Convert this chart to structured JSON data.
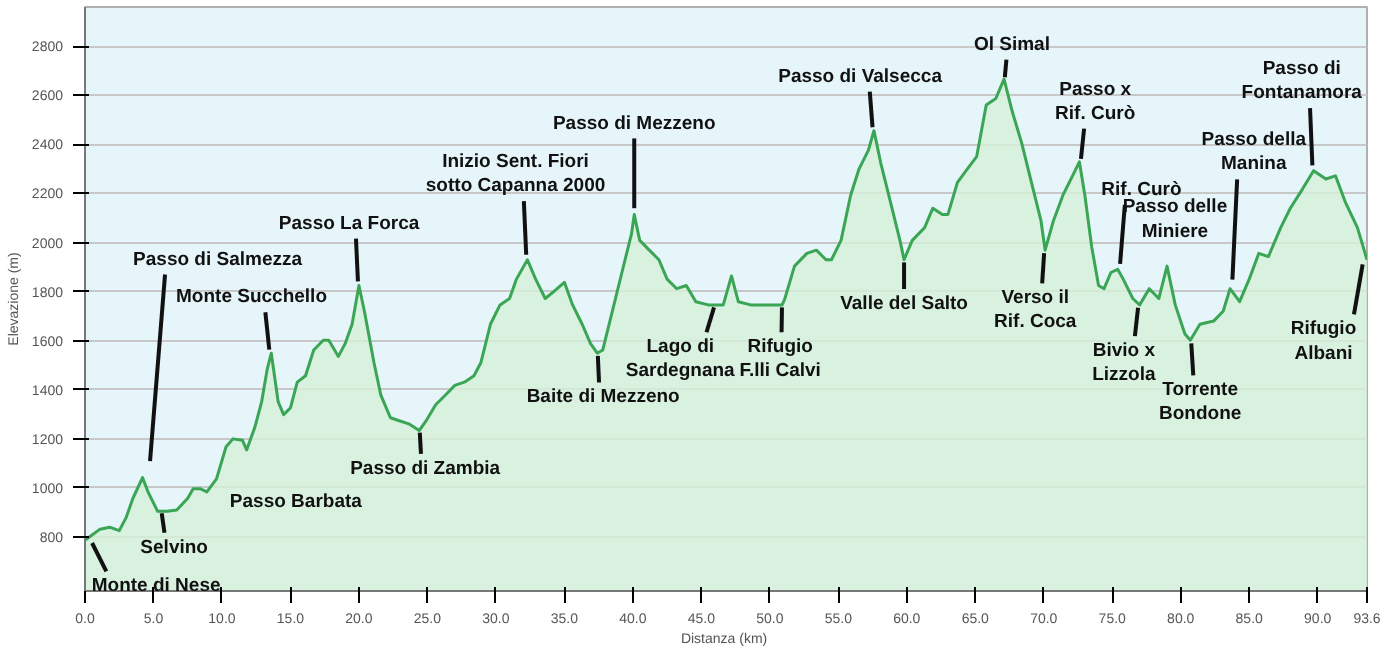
{
  "chart_data": {
    "type": "area",
    "xlabel": "Distanza  (km)",
    "ylabel": "Elevazione (m)",
    "series": [
      {
        "color": "#3aa655",
        "x": [
          0,
          1.1,
          1.8,
          2.5,
          3.0,
          3.5,
          4.2,
          4.6,
          5.3,
          6.0,
          6.7,
          7.5,
          7.9,
          8.4,
          8.9,
          9.6,
          10.3,
          10.8,
          11.5,
          11.8,
          12.4,
          12.9,
          13.3,
          13.6,
          14.1,
          14.5,
          15.0,
          15.5,
          16.1,
          16.7,
          17.4,
          17.8,
          18.5,
          19.0,
          19.5,
          20.0,
          20.4,
          21.1,
          21.6,
          22.3,
          23.0,
          23.7,
          24.4,
          24.9,
          25.6,
          26.3,
          27.0,
          27.7,
          28.4,
          28.9,
          29.6,
          30.3,
          31.0,
          31.5,
          32.3,
          32.9,
          33.6,
          34.2,
          35.0,
          35.6,
          36.3,
          36.9,
          37.4,
          37.8,
          38.5,
          39.2,
          39.9,
          40.1,
          40.5,
          41.2,
          41.9,
          42.5,
          43.2,
          43.9,
          44.6,
          45.5,
          46.2,
          46.6,
          47.2,
          47.7,
          48.6,
          49.5,
          50.9,
          51.1,
          51.8,
          52.7,
          53.4,
          54.1,
          54.5,
          55.2,
          55.9,
          56.5,
          57.2,
          57.6,
          58.1,
          58.8,
          59.5,
          59.8,
          60.4,
          61.3,
          61.9,
          62.6,
          63.0,
          63.7,
          64.4,
          65.1,
          65.8,
          66.5,
          67.1,
          67.7,
          68.4,
          69.1,
          69.8,
          70.1,
          70.7,
          71.4,
          72.1,
          72.6,
          73.0,
          73.5,
          74.0,
          74.4,
          74.9,
          75.4,
          75.8,
          76.5,
          77.0,
          77.7,
          78.4,
          79.0,
          79.6,
          80.3,
          80.7,
          81.4,
          82.4,
          83.1,
          83.6,
          84.3,
          85.0,
          85.7,
          86.4,
          87.3,
          88.0,
          88.9,
          89.7,
          90.6,
          91.3,
          92.0,
          92.9,
          93.6
        ],
        "values": [
          787,
          832,
          840,
          826,
          879,
          958,
          1042,
          984,
          905,
          905,
          910,
          958,
          997,
          997,
          984,
          1037,
          1168,
          1200,
          1194,
          1155,
          1247,
          1352,
          1483,
          1549,
          1352,
          1299,
          1326,
          1431,
          1457,
          1562,
          1602,
          1602,
          1536,
          1589,
          1667,
          1825,
          1720,
          1510,
          1378,
          1286,
          1273,
          1260,
          1234,
          1273,
          1339,
          1378,
          1418,
          1431,
          1457,
          1510,
          1667,
          1746,
          1772,
          1851,
          1930,
          1851,
          1772,
          1799,
          1838,
          1746,
          1667,
          1589,
          1549,
          1562,
          1720,
          1878,
          2035,
          2114,
          2009,
          1969,
          1930,
          1851,
          1812,
          1825,
          1759,
          1746,
          1746,
          1746,
          1864,
          1759,
          1746,
          1746,
          1746,
          1772,
          1904,
          1956,
          1969,
          1930,
          1930,
          2009,
          2193,
          2298,
          2377,
          2456,
          2324,
          2167,
          2009,
          1930,
          2009,
          2061,
          2140,
          2114,
          2114,
          2245,
          2298,
          2350,
          2561,
          2587,
          2666,
          2534,
          2403,
          2245,
          2088,
          1969,
          2088,
          2193,
          2272,
          2329,
          2193,
          1983,
          1825,
          1812,
          1878,
          1891,
          1851,
          1772,
          1746,
          1812,
          1772,
          1904,
          1746,
          1628,
          1602,
          1667,
          1680,
          1720,
          1812,
          1759,
          1851,
          1956,
          1943,
          2061,
          2140,
          2219,
          2293,
          2259,
          2272,
          2167,
          2061,
          1930
        ]
      }
    ],
    "xlim": [
      0,
      93.6
    ],
    "ylim": [
      580,
      2960
    ],
    "xticks": [
      {
        "value": 0,
        "label": "0.0"
      },
      {
        "value": 5,
        "label": "5.0"
      },
      {
        "value": 10,
        "label": "10.0"
      },
      {
        "value": 15,
        "label": "15.0"
      },
      {
        "value": 20,
        "label": "20.0"
      },
      {
        "value": 25,
        "label": "25.0"
      },
      {
        "value": 30,
        "label": "30.0"
      },
      {
        "value": 35,
        "label": "35.0"
      },
      {
        "value": 40,
        "label": "40.0"
      },
      {
        "value": 45,
        "label": "45.0"
      },
      {
        "value": 50,
        "label": "50.0"
      },
      {
        "value": 55,
        "label": "55.0"
      },
      {
        "value": 60,
        "label": "60.0"
      },
      {
        "value": 65,
        "label": "65.0"
      },
      {
        "value": 70,
        "label": "70.0"
      },
      {
        "value": 75,
        "label": "75.0"
      },
      {
        "value": 80,
        "label": "80.0"
      },
      {
        "value": 85,
        "label": "85.0"
      },
      {
        "value": 90,
        "label": "90.0"
      },
      93.6
    ],
    "yticks": [
      800,
      1000,
      1200,
      1400,
      1600,
      1800,
      2000,
      2200,
      2400,
      2600,
      2800
    ],
    "grid": "y",
    "annotations": [
      {
        "text": "Monte di Nese",
        "x": 0,
        "y": 787
      },
      {
        "text": "Passo di Salmezza",
        "x": 4.2,
        "y": 1042
      },
      {
        "text": "Selvino",
        "x": 5.5,
        "y": 905
      },
      {
        "text": "Monte Succhello",
        "x": 13.6,
        "y": 1549
      },
      {
        "text": "Passo Barbata",
        "x": 11.5,
        "y": 1194
      },
      {
        "text": "Passo La Forca",
        "x": 20.0,
        "y": 1825
      },
      {
        "text": "Passo di Zambia",
        "x": 24.4,
        "y": 1234
      },
      {
        "text": "Inizio Sent. Fiori\nsotto Capanna 2000",
        "x": 32.3,
        "y": 1930
      },
      {
        "text": "Baite di Mezzeno",
        "x": 37.4,
        "y": 1549
      },
      {
        "text": "Passo di Mezzeno",
        "x": 40.1,
        "y": 2114
      },
      {
        "text": "Lago di\nSardegnana",
        "x": 46.2,
        "y": 1746
      },
      {
        "text": "Rifugio\nF.lli Calvi",
        "x": 50.9,
        "y": 1746
      },
      {
        "text": "Passo di Valsecca",
        "x": 57.6,
        "y": 2456
      },
      {
        "text": "Valle del Salto",
        "x": 59.8,
        "y": 1930
      },
      {
        "text": "Ol Simal",
        "x": 67.1,
        "y": 2666
      },
      {
        "text": "Passo x\nRif. Curò",
        "x": 72.6,
        "y": 2329
      },
      {
        "text": "Verso il\nRif. Coca",
        "x": 70.1,
        "y": 1969
      },
      {
        "text": "Rif. Curò",
        "x": 75.4,
        "y": 1891
      },
      {
        "text": "Passo delle\nMiniere",
        "x": 79.0,
        "y": 1904
      },
      {
        "text": "Bivio x\nLizzola",
        "x": 77.0,
        "y": 1746
      },
      {
        "text": "Torrente\nBondone",
        "x": 80.7,
        "y": 1602
      },
      {
        "text": "Passo della\nManina",
        "x": 83.6,
        "y": 1812
      },
      {
        "text": "Passo di\nFontanamora",
        "x": 89.7,
        "y": 2293
      },
      {
        "text": "Rifugio\nAlbani",
        "x": 93.6,
        "y": 1930
      }
    ]
  }
}
